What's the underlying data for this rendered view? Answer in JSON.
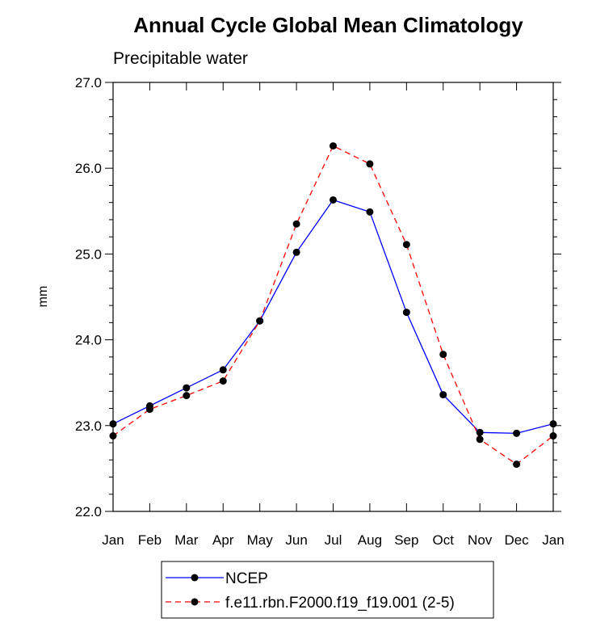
{
  "chart_data": {
    "type": "line",
    "title": "Annual Cycle Global Mean Climatology",
    "subtitle": "Precipitable water",
    "xlabel": "",
    "ylabel": "mm",
    "categories": [
      "Jan",
      "Feb",
      "Mar",
      "Apr",
      "May",
      "Jun",
      "Jul",
      "Aug",
      "Sep",
      "Oct",
      "Nov",
      "Dec",
      "Jan"
    ],
    "ylim": [
      22.0,
      27.0
    ],
    "yticks": [
      "22.0",
      "23.0",
      "24.0",
      "25.0",
      "26.0",
      "27.0"
    ],
    "grid": false,
    "legend_position": "bottom",
    "series": [
      {
        "name": "NCEP",
        "color": "#0000ff",
        "line_style": "solid",
        "marker": "filled-circle",
        "values": [
          23.02,
          23.23,
          23.44,
          23.65,
          24.22,
          25.02,
          25.63,
          25.49,
          24.32,
          23.36,
          22.92,
          22.91,
          23.02
        ]
      },
      {
        "name": "f.e11.rbn.F2000.f19_f19.001 (2-5)",
        "color": "#ff0000",
        "line_style": "dashed",
        "marker": "filled-circle",
        "values": [
          22.88,
          23.19,
          23.35,
          23.52,
          24.22,
          25.35,
          26.26,
          26.05,
          25.11,
          23.83,
          22.84,
          22.55,
          22.88
        ]
      }
    ]
  }
}
